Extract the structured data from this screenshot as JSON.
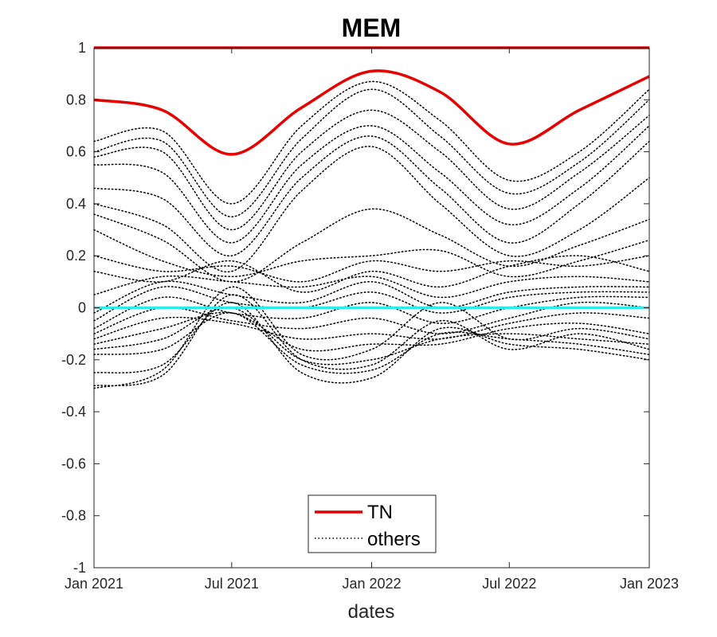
{
  "chart_data": {
    "type": "line",
    "title": "MEM",
    "xlabel": "dates",
    "ylabel": "",
    "xlim": [
      "2021-01-01",
      "2023-01-01"
    ],
    "ylim": [
      -1,
      1
    ],
    "x_ticks": [
      "2021-01-01",
      "2021-07-01",
      "2022-01-01",
      "2022-07-01",
      "2023-01-01"
    ],
    "x_tick_labels": [
      "Jan 2021",
      "Jul 2021",
      "Jan 2022",
      "Jul 2022",
      "Jan 2023"
    ],
    "y_ticks": [
      -1,
      -0.8,
      -0.6,
      -0.4,
      -0.2,
      0,
      0.2,
      0.4,
      0.6,
      0.8,
      1
    ],
    "y_tick_labels": [
      "-1",
      "-0.8",
      "-0.6",
      "-0.4",
      "-0.2",
      "0",
      "0.2",
      "0.4",
      "0.6",
      "0.8",
      "1"
    ],
    "grid": false,
    "legend_position": "bottom-center",
    "legend": [
      {
        "label": "TN",
        "style": "solid",
        "color": "#e60000"
      },
      {
        "label": "others",
        "style": "dotted",
        "color": "#000000"
      }
    ],
    "x": [
      "2021-01-01",
      "2021-04-01",
      "2021-07-01",
      "2021-10-01",
      "2022-01-01",
      "2022-04-01",
      "2022-07-01",
      "2022-10-01",
      "2023-01-01"
    ],
    "series": [
      {
        "name": "TN",
        "style": "solid",
        "color": "#e60000",
        "width": 3.5,
        "values": [
          0.8,
          0.76,
          0.59,
          0.77,
          0.91,
          0.83,
          0.63,
          0.76,
          0.89
        ]
      },
      {
        "style": "solid",
        "color": "#e60000",
        "width": 3.5,
        "values": [
          1,
          1,
          1,
          1,
          1,
          1,
          1,
          1,
          1
        ]
      },
      {
        "style": "solid",
        "color": "#00ffff",
        "width": 3.5,
        "values": [
          0,
          0,
          0,
          0,
          0,
          0,
          0,
          0,
          0
        ]
      },
      {
        "style": "dotted",
        "color": "#000000",
        "values": [
          0.64,
          0.68,
          0.4,
          0.7,
          0.87,
          0.72,
          0.49,
          0.6,
          0.84
        ]
      },
      {
        "style": "dotted",
        "color": "#000000",
        "values": [
          0.6,
          0.64,
          0.35,
          0.65,
          0.84,
          0.66,
          0.44,
          0.56,
          0.8
        ]
      },
      {
        "style": "dotted",
        "color": "#000000",
        "values": [
          0.58,
          0.6,
          0.3,
          0.6,
          0.76,
          0.6,
          0.38,
          0.52,
          0.74
        ]
      },
      {
        "style": "dotted",
        "color": "#000000",
        "values": [
          0.55,
          0.52,
          0.25,
          0.55,
          0.7,
          0.52,
          0.32,
          0.46,
          0.7
        ]
      },
      {
        "style": "dotted",
        "color": "#000000",
        "values": [
          0.46,
          0.42,
          0.2,
          0.5,
          0.66,
          0.46,
          0.25,
          0.4,
          0.64
        ]
      },
      {
        "style": "dotted",
        "color": "#000000",
        "values": [
          0.4,
          0.32,
          0.14,
          0.45,
          0.62,
          0.4,
          0.2,
          0.3,
          0.5
        ]
      },
      {
        "style": "dotted",
        "color": "#000000",
        "values": [
          0.36,
          0.26,
          0.1,
          0.25,
          0.38,
          0.28,
          0.16,
          0.24,
          0.34
        ]
      },
      {
        "style": "dotted",
        "color": "#000000",
        "values": [
          0.3,
          0.18,
          0.12,
          0.18,
          0.2,
          0.22,
          0.12,
          0.18,
          0.26
        ]
      },
      {
        "style": "dotted",
        "color": "#000000",
        "values": [
          0.2,
          0.14,
          0.16,
          0.1,
          0.18,
          0.14,
          0.18,
          0.16,
          0.2
        ]
      },
      {
        "style": "dotted",
        "color": "#000000",
        "values": [
          0.14,
          0.1,
          0.18,
          0.06,
          0.14,
          0.08,
          0.16,
          0.2,
          0.14
        ]
      },
      {
        "style": "dotted",
        "color": "#000000",
        "values": [
          0.05,
          0.12,
          0.1,
          0.08,
          0.12,
          0.04,
          0.1,
          0.12,
          0.1
        ]
      },
      {
        "style": "dotted",
        "color": "#000000",
        "values": [
          -0.02,
          0.1,
          0.05,
          0.02,
          0.1,
          0.0,
          0.06,
          0.08,
          0.08
        ]
      },
      {
        "style": "dotted",
        "color": "#000000",
        "values": [
          -0.05,
          0.08,
          0.02,
          0.0,
          0.06,
          -0.02,
          0.04,
          0.06,
          0.06
        ]
      },
      {
        "style": "dotted",
        "color": "#000000",
        "values": [
          -0.08,
          0.04,
          -0.02,
          -0.04,
          0.02,
          -0.06,
          0.0,
          0.04,
          0.04
        ]
      },
      {
        "style": "dotted",
        "color": "#000000",
        "values": [
          -0.1,
          0.0,
          -0.05,
          -0.08,
          -0.04,
          -0.1,
          -0.04,
          0.02,
          0.0
        ]
      },
      {
        "style": "dotted",
        "color": "#000000",
        "values": [
          -0.12,
          -0.04,
          -0.06,
          -0.12,
          -0.1,
          -0.12,
          -0.06,
          -0.02,
          -0.04
        ]
      },
      {
        "style": "dotted",
        "color": "#000000",
        "values": [
          -0.14,
          -0.08,
          -0.02,
          -0.16,
          -0.14,
          -0.14,
          -0.08,
          -0.06,
          -0.1
        ]
      },
      {
        "style": "dotted",
        "color": "#000000",
        "values": [
          -0.16,
          -0.12,
          0.0,
          -0.2,
          -0.2,
          -0.12,
          -0.1,
          -0.12,
          -0.14
        ]
      },
      {
        "style": "dotted",
        "color": "#000000",
        "values": [
          -0.18,
          -0.16,
          -0.02,
          -0.22,
          -0.24,
          -0.1,
          -0.12,
          -0.14,
          -0.18
        ]
      },
      {
        "style": "dotted",
        "color": "#000000",
        "values": [
          -0.25,
          -0.22,
          0.02,
          -0.25,
          -0.27,
          -0.08,
          -0.14,
          -0.16,
          -0.2
        ]
      },
      {
        "style": "dotted",
        "color": "#000000",
        "values": [
          -0.3,
          -0.26,
          0.05,
          -0.2,
          -0.22,
          -0.05,
          -0.16,
          -0.1,
          -0.16
        ]
      },
      {
        "style": "dotted",
        "color": "#000000",
        "values": [
          -0.31,
          -0.24,
          0.08,
          -0.18,
          -0.16,
          0.02,
          -0.12,
          -0.08,
          -0.12
        ]
      }
    ]
  }
}
